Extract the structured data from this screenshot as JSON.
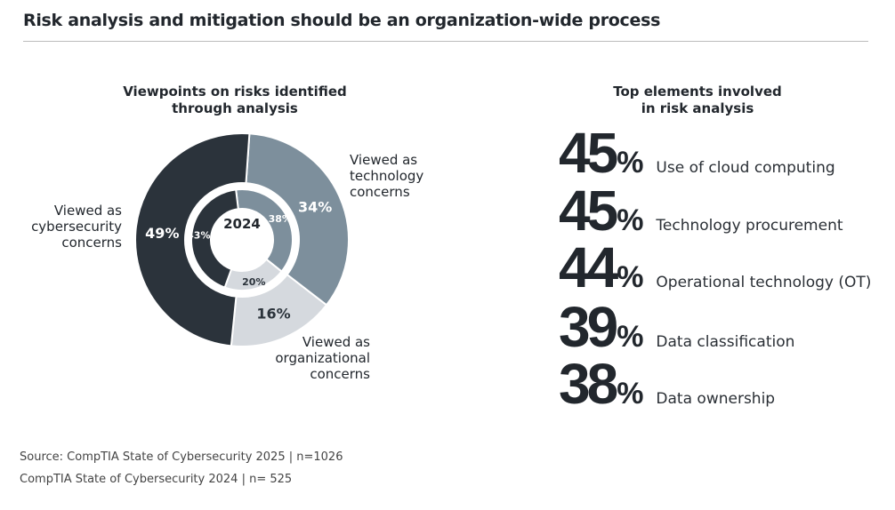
{
  "title": "Risk analysis and mitigation should be an organization-wide process",
  "chart_data": [
    {
      "type": "pie",
      "title": "Viewpoints on risks identified through analysis",
      "title_lines": [
        "Viewpoints on risks identified",
        "through analysis"
      ],
      "center_label": "2024",
      "categories": [
        "Viewed as technology concerns",
        "Viewed as organizational concerns",
        "Viewed as cybersecurity concerns"
      ],
      "category_lines": [
        [
          "Viewed as",
          "technology",
          "concerns"
        ],
        [
          "Viewed as",
          "organizational",
          "concerns"
        ],
        [
          "Viewed as",
          "cybersecurity",
          "concerns"
        ]
      ],
      "colors": [
        "#7d8f9c",
        "#d5d9de",
        "#2b333b"
      ],
      "series": [
        {
          "name": "2025",
          "ring": "outer",
          "values": [
            34,
            16,
            49
          ],
          "labels": [
            "34%",
            "16%",
            "49%"
          ]
        },
        {
          "name": "2024",
          "ring": "inner",
          "values": [
            38,
            20,
            43
          ],
          "labels": [
            "38%",
            "20%",
            "43%"
          ]
        }
      ]
    },
    {
      "type": "table",
      "title": "Top elements involved in risk analysis",
      "title_lines": [
        "Top elements involved",
        "in risk analysis"
      ],
      "rows": [
        {
          "value": "45",
          "unit": "%",
          "label": "Use of cloud computing"
        },
        {
          "value": "45",
          "unit": "%",
          "label": "Technology procurement"
        },
        {
          "value": "44",
          "unit": "%",
          "label": "Operational technology (OT)"
        },
        {
          "value": "39",
          "unit": "%",
          "label": "Data classification"
        },
        {
          "value": "38",
          "unit": "%",
          "label": "Data ownership"
        }
      ]
    }
  ],
  "sources": [
    "Source: CompTIA State of Cybersecurity 2025 | n=1026",
    "CompTIA State of Cybersecurity 2024 | n= 525"
  ]
}
